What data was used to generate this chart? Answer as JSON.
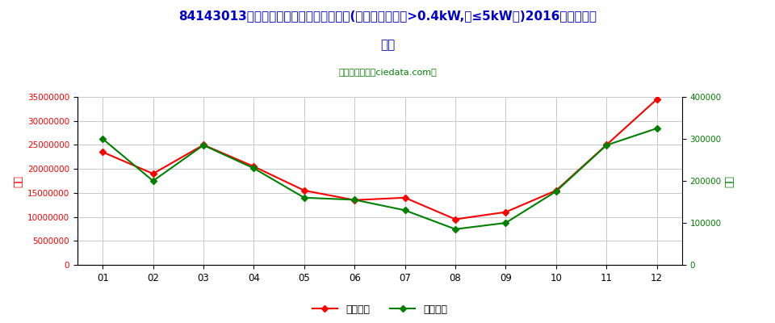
{
  "title_line1": "84143013小型电动机驱动空调器用压缩机(电动机额定功率>0.4kW,但≤5kW的)2016年进口月度",
  "title_line2": "走势",
  "subtitle": "进出口服务网（ciedata.com）",
  "months": [
    "01",
    "02",
    "03",
    "04",
    "05",
    "06",
    "07",
    "08",
    "09",
    "10",
    "11",
    "12"
  ],
  "import_usd": [
    23500000,
    19000000,
    25000000,
    20500000,
    15500000,
    13500000,
    14000000,
    9500000,
    11000000,
    15500000,
    25000000,
    34500000
  ],
  "import_qty": [
    300000,
    200000,
    285000,
    230000,
    160000,
    155000,
    130000,
    85000,
    100000,
    175000,
    285000,
    325000
  ],
  "left_ylim": [
    0,
    35000000
  ],
  "right_ylim": [
    0,
    400000
  ],
  "left_yticks": [
    0,
    5000000,
    10000000,
    15000000,
    20000000,
    25000000,
    30000000,
    35000000
  ],
  "right_yticks": [
    0,
    100000,
    200000,
    300000,
    400000
  ],
  "left_ylabel": "金额",
  "right_ylabel": "数量",
  "legend_usd": "进口美元",
  "legend_qty": "进口数量",
  "line_color_usd": "#FF0000",
  "line_color_qty": "#008000",
  "bg_color": "#FFFFFF",
  "grid_color": "#C8C8C8",
  "title_color": "#0000CC",
  "subtitle_color": "#008000",
  "axis_color_left": "#FF0000",
  "axis_color_right": "#008000"
}
